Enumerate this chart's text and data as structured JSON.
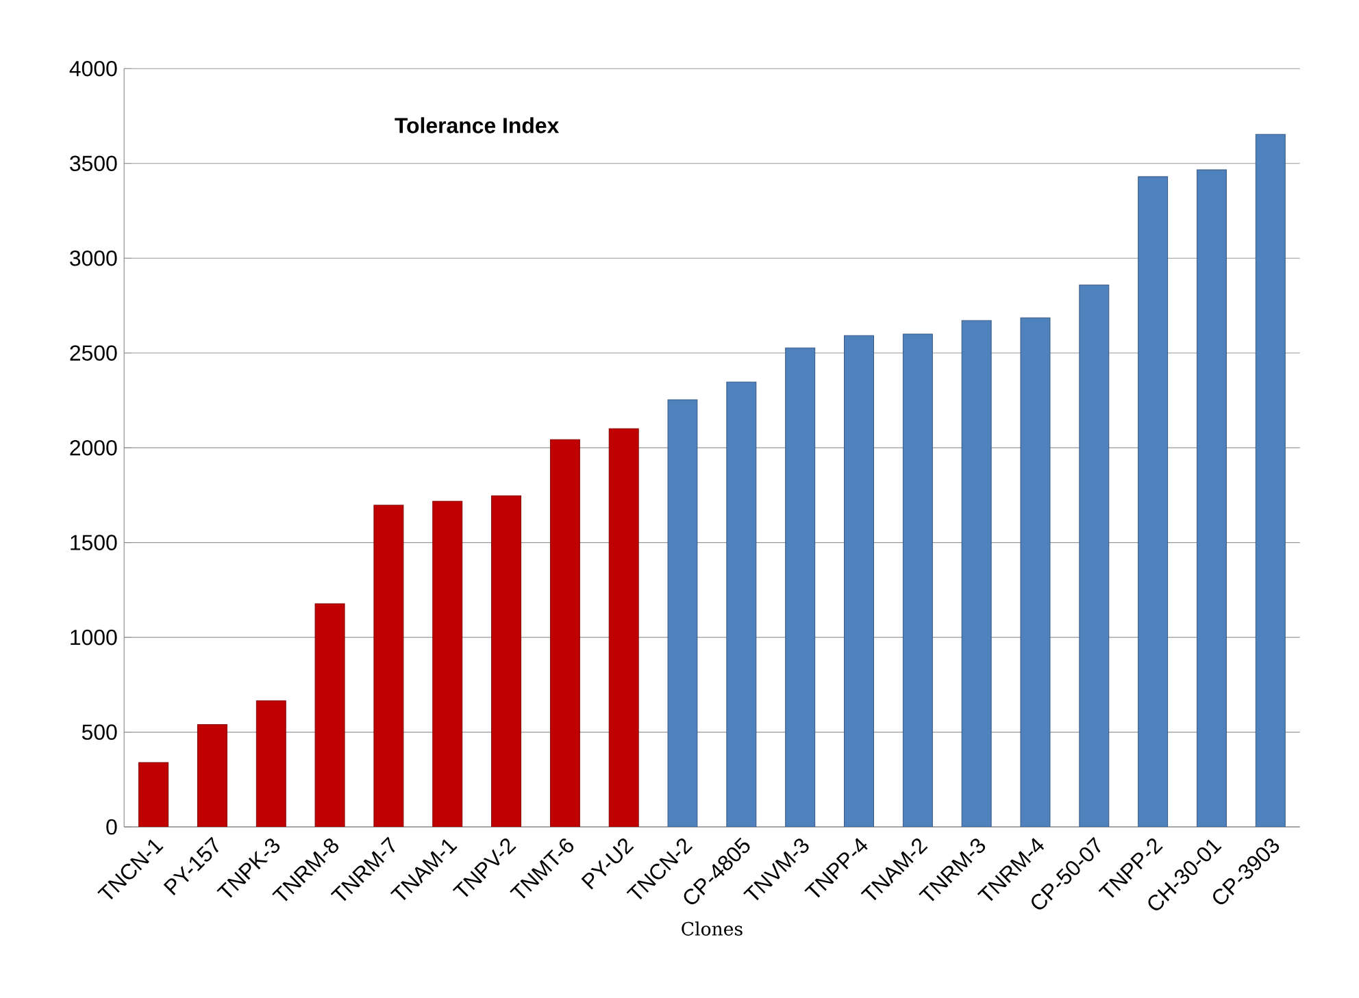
{
  "chart_data": {
    "type": "bar",
    "title": "Tolerance Index",
    "xlabel": "Clones",
    "categories": [
      "TNCN-1",
      "PY-157",
      "TNPK-3",
      "TNRM-8",
      "TNRM-7",
      "TNAM-1",
      "TNPV-2",
      "TNMT-6",
      "PY-U2",
      "TNCN-2",
      "CP-4805",
      "TNVM-3",
      "TNPP-4",
      "TNAM-2",
      "TNRM-3",
      "TNRM-4",
      "CP-50-07",
      "TNPP-2",
      "CH-30-01",
      "CP-3903"
    ],
    "values": [
      340,
      540,
      665,
      1177,
      1697,
      1718,
      1747,
      2043,
      2101,
      2253,
      2347,
      2527,
      2592,
      2600,
      2671,
      2686,
      2859,
      3430,
      3466,
      3653
    ],
    "colors": [
      "#c00000",
      "#c00000",
      "#c00000",
      "#c00000",
      "#c00000",
      "#c00000",
      "#c00000",
      "#c00000",
      "#c00000",
      "#4f81bd",
      "#4f81bd",
      "#4f81bd",
      "#4f81bd",
      "#4f81bd",
      "#4f81bd",
      "#4f81bd",
      "#4f81bd",
      "#4f81bd",
      "#4f81bd",
      "#4f81bd"
    ],
    "ylim": [
      0,
      4000
    ],
    "yticks": [
      0,
      500,
      1000,
      1500,
      2000,
      2500,
      3000,
      3500,
      4000
    ],
    "grid": "y"
  }
}
